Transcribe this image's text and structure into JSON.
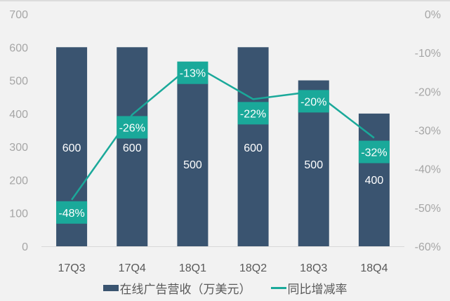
{
  "chart_data": {
    "type": "bar+line",
    "categories": [
      "17Q3",
      "17Q4",
      "18Q1",
      "18Q2",
      "18Q3",
      "18Q4"
    ],
    "series": [
      {
        "name": "在线广告营收（万美元）",
        "type": "bar",
        "axis": "left",
        "color": "#3a5470",
        "values": [
          600,
          600,
          500,
          600,
          500,
          400
        ]
      },
      {
        "name": "同比增减率",
        "type": "line",
        "axis": "right",
        "color": "#1aa99a",
        "values": [
          -48,
          -26,
          -13,
          -22,
          -20,
          -32
        ],
        "labels": [
          "-48%",
          "-26%",
          "-13%",
          "-22%",
          "-20%",
          "-32%"
        ]
      }
    ],
    "left_axis": {
      "ticks": [
        "0",
        "100",
        "200",
        "300",
        "400",
        "500",
        "600",
        "700"
      ],
      "ylim": [
        0,
        700
      ]
    },
    "right_axis": {
      "ticks": [
        "0%",
        "-10%",
        "-20%",
        "-30%",
        "-40%",
        "-50%",
        "-60%"
      ],
      "ylim": [
        -60,
        0
      ]
    },
    "grid": false,
    "legend_position": "bottom"
  },
  "legend": {
    "bar_label": "在线广告营收（万美元）",
    "line_label": "同比增减率"
  }
}
